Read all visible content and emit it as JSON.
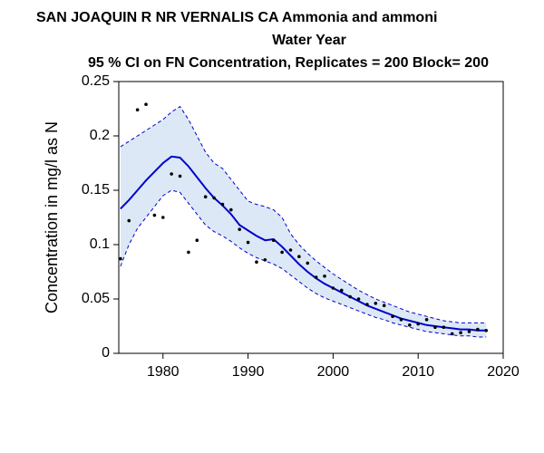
{
  "chart_data": {
    "type": "line",
    "title": [
      "SAN JOAQUIN R NR VERNALIS CA   Ammonia and ammoni",
      "Water Year",
      "95 % CI on FN Concentration, Replicates = 200 Block= 200"
    ],
    "ylabel": "Concentration in mg/l as N",
    "x": [
      1975,
      1976,
      1977,
      1978,
      1979,
      1980,
      1981,
      1982,
      1983,
      1984,
      1985,
      1986,
      1987,
      1988,
      1989,
      1990,
      1991,
      1992,
      1993,
      1994,
      1995,
      1996,
      1997,
      1998,
      1999,
      2000,
      2001,
      2002,
      2003,
      2004,
      2005,
      2006,
      2007,
      2008,
      2009,
      2010,
      2011,
      2012,
      2013,
      2014,
      2015,
      2016,
      2017,
      2018
    ],
    "values": [
      0.133,
      0.141,
      0.15,
      0.159,
      0.167,
      0.175,
      0.181,
      0.18,
      0.172,
      0.162,
      0.152,
      0.143,
      0.136,
      0.128,
      0.118,
      0.113,
      0.108,
      0.104,
      0.105,
      0.098,
      0.09,
      0.082,
      0.075,
      0.069,
      0.064,
      0.06,
      0.056,
      0.052,
      0.048,
      0.044,
      0.041,
      0.038,
      0.035,
      0.032,
      0.03,
      0.028,
      0.026,
      0.025,
      0.024,
      0.023,
      0.022,
      0.022,
      0.021,
      0.021
    ],
    "color": "#0000cc",
    "ci_upper": [
      0.19,
      0.195,
      0.2,
      0.205,
      0.21,
      0.215,
      0.222,
      0.227,
      0.215,
      0.2,
      0.185,
      0.175,
      0.17,
      0.16,
      0.15,
      0.14,
      0.137,
      0.135,
      0.132,
      0.125,
      0.11,
      0.1,
      0.092,
      0.085,
      0.079,
      0.073,
      0.068,
      0.063,
      0.058,
      0.054,
      0.05,
      0.047,
      0.044,
      0.041,
      0.038,
      0.036,
      0.034,
      0.032,
      0.03,
      0.029,
      0.028,
      0.028,
      0.028,
      0.028
    ],
    "ci_lower": [
      0.08,
      0.1,
      0.115,
      0.125,
      0.135,
      0.145,
      0.15,
      0.148,
      0.138,
      0.128,
      0.118,
      0.112,
      0.108,
      0.103,
      0.097,
      0.092,
      0.088,
      0.085,
      0.082,
      0.078,
      0.072,
      0.066,
      0.06,
      0.055,
      0.051,
      0.048,
      0.045,
      0.042,
      0.039,
      0.036,
      0.033,
      0.031,
      0.028,
      0.026,
      0.024,
      0.022,
      0.02,
      0.019,
      0.018,
      0.017,
      0.016,
      0.016,
      0.015,
      0.015
    ],
    "band_color": "#dce8f5",
    "band_line_color": "#0000cc",
    "observed": [
      0.087,
      0.122,
      0.224,
      0.229,
      0.127,
      0.125,
      0.165,
      0.163,
      0.093,
      0.104,
      0.144,
      0.143,
      0.137,
      0.132,
      0.114,
      0.102,
      0.084,
      0.086,
      0.104,
      0.093,
      0.095,
      0.089,
      0.083,
      0.07,
      0.071,
      0.06,
      0.058,
      0.052,
      0.05,
      0.045,
      0.046,
      0.044,
      0.034,
      0.031,
      0.026,
      0.027,
      0.031,
      0.024,
      0.024,
      0.018,
      0.019,
      0.02,
      0.022,
      0.021
    ],
    "point_color": "#000000",
    "xlim": [
      1974.8,
      2020
    ],
    "ylim": [
      0,
      0.25
    ],
    "xticks": [
      1980,
      1990,
      2000,
      2010,
      2020
    ],
    "yticks": [
      0,
      0.05,
      0.1,
      0.15,
      0.2,
      0.25
    ]
  }
}
